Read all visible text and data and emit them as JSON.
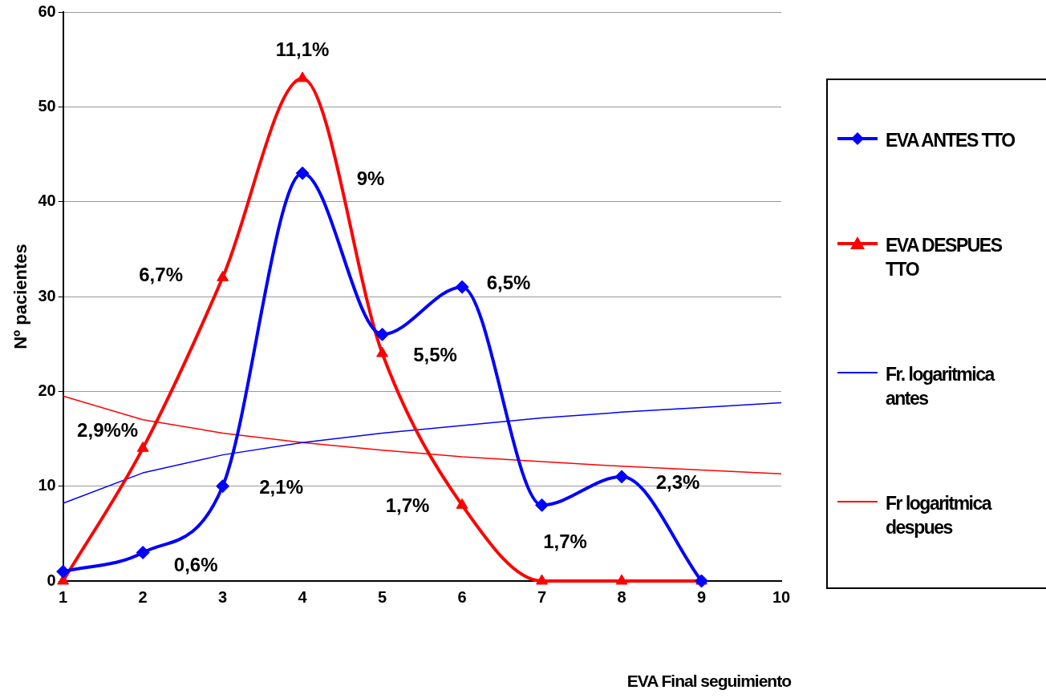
{
  "chart_data": {
    "type": "line",
    "xlabel": "EVA Final seguimiento",
    "ylabel": "Nº pacientes",
    "xlim": [
      1,
      10
    ],
    "xticks": [
      1,
      2,
      3,
      4,
      5,
      6,
      7,
      8,
      9,
      10
    ],
    "ylim": [
      0,
      60
    ],
    "yticks": [
      0,
      10,
      20,
      30,
      40,
      50,
      60
    ],
    "grid": "y",
    "legend": "right",
    "line_style": "solid",
    "series": [
      {
        "name": "EVA ANTES TTO",
        "color": "#0000ff",
        "marker": "diamond",
        "x": [
          1,
          2,
          3,
          4,
          5,
          6,
          7,
          8,
          9
        ],
        "values": [
          1,
          3,
          10,
          43,
          26,
          31,
          8,
          11,
          0
        ]
      },
      {
        "name": "EVA DESPUES TTO",
        "color": "#ff0000",
        "marker": "triangle",
        "x": [
          1,
          2,
          3,
          4,
          5,
          6,
          7,
          8,
          9
        ],
        "values": [
          0,
          14,
          32,
          53,
          24,
          8,
          0,
          0,
          0
        ]
      },
      {
        "name": "Fr. logaritmica antes",
        "color": "#0000ff",
        "marker": "none",
        "x": [
          1,
          2,
          3,
          4,
          5,
          6,
          7,
          8,
          9,
          10
        ],
        "values": [
          8.2,
          11.4,
          13.3,
          14.6,
          15.6,
          16.4,
          17.2,
          17.8,
          18.3,
          18.8
        ]
      },
      {
        "name": "Fr logaritmica despues",
        "color": "#ff0000",
        "marker": "none",
        "x": [
          1,
          2,
          3,
          4,
          5,
          6,
          7,
          8,
          9,
          10
        ],
        "values": [
          19.5,
          17.0,
          15.6,
          14.6,
          13.8,
          13.1,
          12.6,
          12.1,
          11.7,
          11.3
        ]
      }
    ],
    "annotations": [
      {
        "text": "11,1%",
        "x": 4,
        "y": 53
      },
      {
        "text": "9%",
        "x": 4,
        "y": 43
      },
      {
        "text": "6,7%",
        "x": 3,
        "y": 32
      },
      {
        "text": "6,5%",
        "x": 6,
        "y": 31
      },
      {
        "text": "5,5%",
        "x": 5,
        "y": 24
      },
      {
        "text": "2,9%%",
        "x": 2,
        "y": 14
      },
      {
        "text": "2,1%",
        "x": 3,
        "y": 10
      },
      {
        "text": "0,6%",
        "x": 2,
        "y": 3
      },
      {
        "text": "1,7%",
        "x": 6,
        "y": 8
      },
      {
        "text": "1,7%",
        "x": 7,
        "y": 8
      },
      {
        "text": "2,3%",
        "x": 8,
        "y": 11
      }
    ]
  }
}
